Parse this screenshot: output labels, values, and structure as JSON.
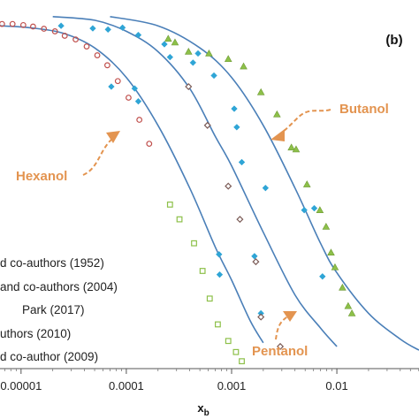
{
  "chart_data": {
    "type": "scatter",
    "panel_label": "(b)",
    "xlabel_main": "x",
    "xlabel_sub": "b",
    "xscale": "log",
    "xlim": [
      6.31e-06,
      0.0603
    ],
    "ylim": [
      0,
      1
    ],
    "xticks": [
      {
        "value": 1e-05,
        "label": "0.00001"
      },
      {
        "value": 0.0001,
        "label": "0.0001"
      },
      {
        "value": 0.001,
        "label": "0.001"
      },
      {
        "value": 0.01,
        "label": "0.01"
      }
    ],
    "legend": [
      "d co-authors (1952)",
      "and co-authors (2004)",
      "Park (2017)",
      "uthors (2010)",
      "d co-author (2009)"
    ],
    "curves": [
      {
        "name": "Hexanol",
        "points": [
          [
            6.31e-06,
            0.93
          ],
          [
            1.2e-05,
            0.925
          ],
          [
            2.5e-05,
            0.91
          ],
          [
            5e-05,
            0.87
          ],
          [
            0.0001,
            0.79
          ],
          [
            0.0002,
            0.66
          ],
          [
            0.0004,
            0.49
          ],
          [
            0.0007,
            0.33
          ],
          [
            0.001,
            0.24
          ],
          [
            0.0015,
            0.13
          ],
          [
            0.002,
            0.07
          ]
        ]
      },
      {
        "name": "Pentanol",
        "points": [
          [
            2e-05,
            0.955
          ],
          [
            5e-05,
            0.945
          ],
          [
            0.0001,
            0.915
          ],
          [
            0.0002,
            0.86
          ],
          [
            0.0004,
            0.76
          ],
          [
            0.0007,
            0.63
          ],
          [
            0.001,
            0.55
          ],
          [
            0.002,
            0.37
          ],
          [
            0.004,
            0.2
          ],
          [
            0.007,
            0.11
          ],
          [
            0.01,
            0.06
          ]
        ]
      },
      {
        "name": "Butanol",
        "points": [
          [
            7e-05,
            0.955
          ],
          [
            0.0002,
            0.93
          ],
          [
            0.0005,
            0.87
          ],
          [
            0.001,
            0.79
          ],
          [
            0.002,
            0.66
          ],
          [
            0.004,
            0.49
          ],
          [
            0.007,
            0.34
          ],
          [
            0.01,
            0.26
          ],
          [
            0.02,
            0.15
          ],
          [
            0.04,
            0.08
          ],
          [
            0.0603,
            0.05
          ]
        ]
      }
    ],
    "series": [
      {
        "name": "red circles",
        "color": "#c0504d",
        "marker": "circle",
        "x": [
          6.6e-06,
          8.3e-06,
          1.05e-05,
          1.3e-05,
          1.65e-05,
          2.1e-05,
          2.6e-05,
          3.3e-05,
          4.2e-05,
          5.3e-05,
          6.6e-05,
          8.3e-05,
          0.000105,
          0.000133,
          0.000165
        ],
        "y": [
          0.935,
          0.935,
          0.932,
          0.928,
          0.922,
          0.915,
          0.903,
          0.893,
          0.874,
          0.85,
          0.823,
          0.78,
          0.735,
          0.675,
          0.61
        ]
      },
      {
        "name": "blue diamonds",
        "color": "#2fa5d6",
        "marker": "diamond",
        "x": [
          2.4e-05,
          4.8e-05,
          6.7e-05,
          7.2e-05,
          9.2e-05,
          0.00013,
          0.00023,
          0.00026,
          0.00043,
          0.00048,
          0.00068,
          0.00076,
          0.00077,
          0.00106,
          0.00112,
          0.00125,
          0.00165,
          0.0019,
          0.0021,
          0.0049,
          0.0061,
          0.0073
        ],
        "y": [
          0.93,
          0.923,
          0.92,
          0.765,
          0.925,
          0.905,
          0.88,
          0.845,
          0.83,
          0.855,
          0.795,
          0.31,
          0.255,
          0.705,
          0.655,
          0.56,
          0.305,
          0.15,
          0.49,
          0.43,
          0.435,
          0.25
        ],
        "group_x": [
          0.00012,
          0.00013
        ],
        "group_y": [
          0.76,
          0.725
        ]
      },
      {
        "name": "dark diamonds",
        "color": "#7a5a55",
        "marker": "diamond",
        "x": [
          0.00039,
          0.00059,
          0.00093,
          0.0012,
          0.0017,
          0.0019,
          0.0029
        ],
        "y": [
          0.765,
          0.66,
          0.495,
          0.405,
          0.29,
          0.14,
          0.06
        ]
      },
      {
        "name": "green triangles",
        "color": "#8dc049",
        "marker": "triangle",
        "x": [
          0.00025,
          0.00029,
          0.00039,
          0.00061,
          0.00093,
          0.0013,
          0.0019,
          0.0027,
          0.0037,
          0.0041,
          0.0052,
          0.0069,
          0.0079,
          0.0088,
          0.0096,
          0.0113,
          0.0128,
          0.0139
        ],
        "y": [
          0.895,
          0.885,
          0.86,
          0.855,
          0.84,
          0.82,
          0.75,
          0.69,
          0.6,
          0.595,
          0.5,
          0.43,
          0.385,
          0.315,
          0.275,
          0.22,
          0.17,
          0.15
        ]
      },
      {
        "name": "green squares",
        "color": "#8dc049",
        "marker": "square",
        "x": [
          0.00026,
          0.00032,
          0.00044,
          0.00053,
          0.00062,
          0.00074,
          0.00093,
          0.0011,
          0.00125
        ],
        "y": [
          0.445,
          0.405,
          0.34,
          0.265,
          0.19,
          0.12,
          0.075,
          0.045,
          0.02
        ]
      }
    ],
    "annotations": [
      {
        "text": "Hexanol"
      },
      {
        "text": "Pentanol"
      },
      {
        "text": "Butanol"
      }
    ]
  }
}
